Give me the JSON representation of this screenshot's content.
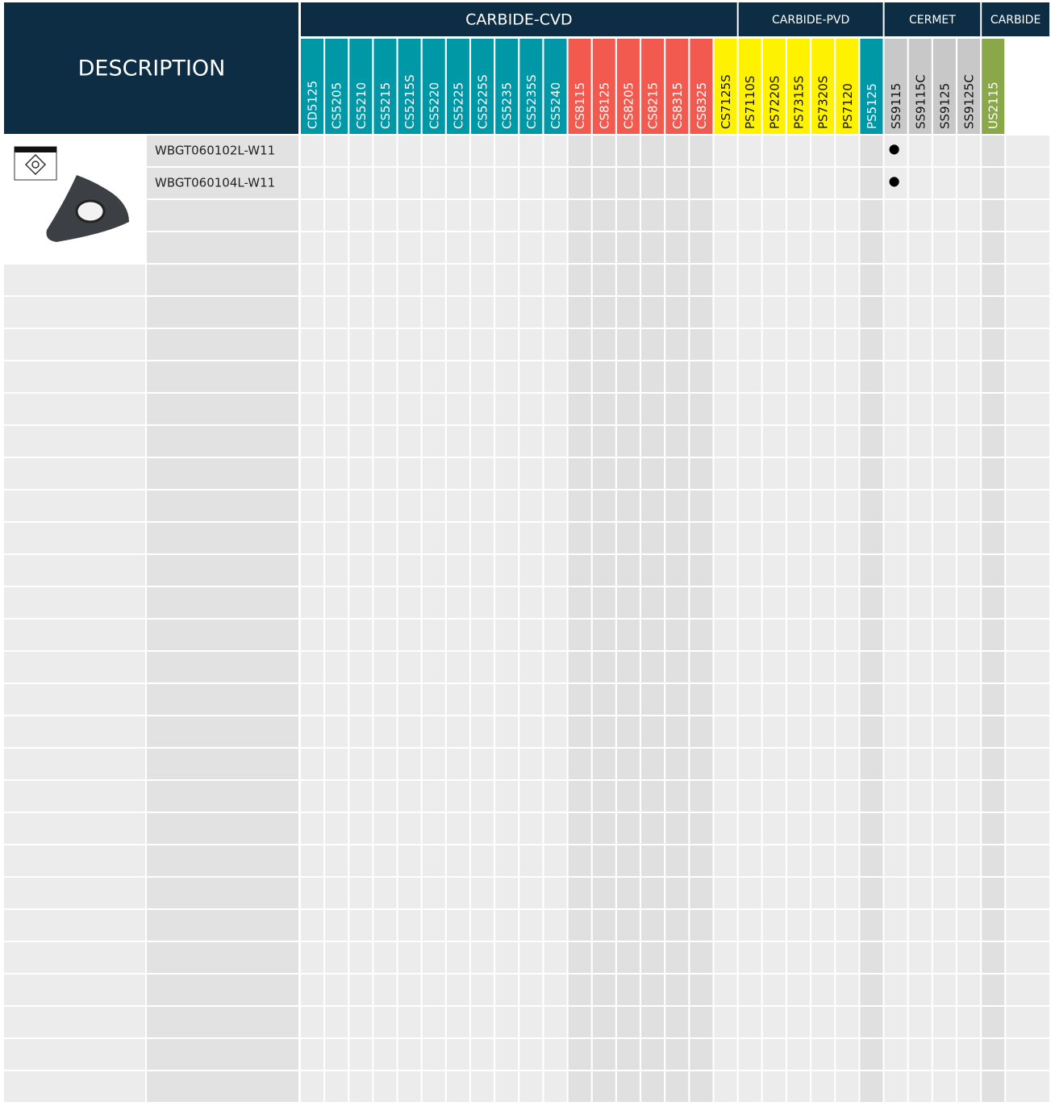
{
  "header": {
    "description": "DESCRIPTION"
  },
  "groups": [
    {
      "label": "CARBIDE-CVD",
      "span": 18
    },
    {
      "label": "CARBIDE-PVD",
      "span": 6
    },
    {
      "label": "CERMET",
      "span": 4
    },
    {
      "label": "CARBIDE",
      "span": 1
    }
  ],
  "grades": [
    {
      "label": "CD5125",
      "color": "#0097a7"
    },
    {
      "label": "CS5205",
      "color": "#0097a7"
    },
    {
      "label": "CS5210",
      "color": "#0097a7"
    },
    {
      "label": "CS5215",
      "color": "#0097a7"
    },
    {
      "label": "CS5215S",
      "color": "#0097a7"
    },
    {
      "label": "CS5220",
      "color": "#0097a7"
    },
    {
      "label": "CS5225",
      "color": "#0097a7"
    },
    {
      "label": "CS5225S",
      "color": "#0097a7"
    },
    {
      "label": "CS5235",
      "color": "#0097a7"
    },
    {
      "label": "CS5235S",
      "color": "#0097a7"
    },
    {
      "label": "CS5240",
      "color": "#0097a7"
    },
    {
      "label": "CS8115",
      "color": "#f25a4f"
    },
    {
      "label": "CS8125",
      "color": "#f25a4f"
    },
    {
      "label": "CS8205",
      "color": "#f25a4f"
    },
    {
      "label": "CS8215",
      "color": "#f25a4f"
    },
    {
      "label": "CS8315",
      "color": "#f25a4f"
    },
    {
      "label": "CS8325",
      "color": "#f25a4f"
    },
    {
      "label": "CS7125S",
      "color": "#fff200"
    },
    {
      "label": "PS7110S",
      "color": "#fff200"
    },
    {
      "label": "PS7220S",
      "color": "#fff200"
    },
    {
      "label": "PS7315S",
      "color": "#fff200"
    },
    {
      "label": "PS7320S",
      "color": "#fff200"
    },
    {
      "label": "PS7120",
      "color": "#fff200"
    },
    {
      "label": "PS5125",
      "color": "#0097a7"
    },
    {
      "label": "SS9115",
      "color": "#c8c8c8"
    },
    {
      "label": "SS9115C",
      "color": "#c8c8c8"
    },
    {
      "label": "SS9125",
      "color": "#c8c8c8"
    },
    {
      "label": "SS9125C",
      "color": "#c8c8c8"
    },
    {
      "label": "US2115",
      "color": "#8aa84a"
    }
  ],
  "rows": [
    {
      "part": "WBGT060102L-W11",
      "marks": {
        "SS9115": "●"
      }
    },
    {
      "part": "WBGT060104L-W11",
      "marks": {
        "SS9115": "●"
      }
    }
  ]
}
